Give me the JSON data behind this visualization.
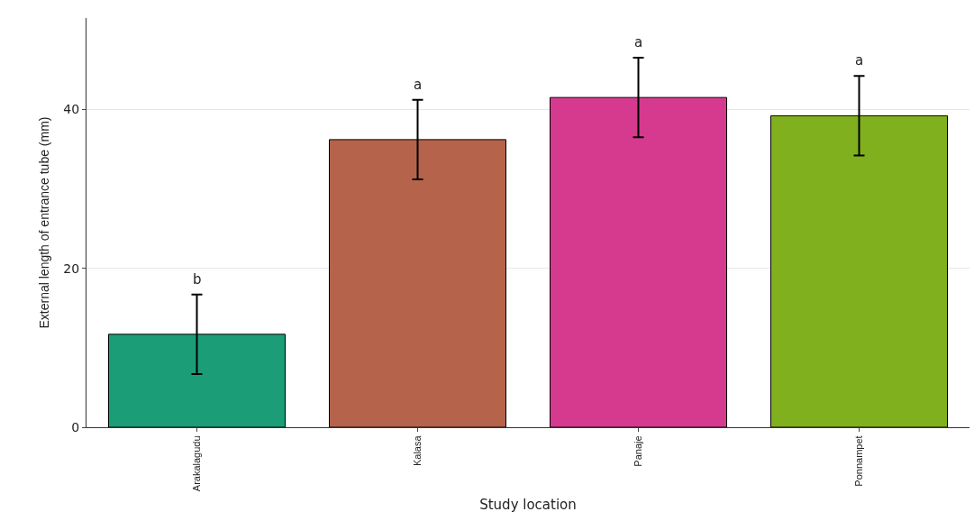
{
  "chart_data": {
    "type": "bar",
    "xlabel": "Study location",
    "ylabel": "External length of entrance tube (mm)",
    "categories": [
      "Arakalagudu",
      "Kalasa",
      "Panaje",
      "Ponnampet"
    ],
    "values": [
      11.7,
      36.2,
      41.5,
      39.2
    ],
    "colors": [
      "#1b9e77",
      "#b5634b",
      "#d63a8f",
      "#80b01e"
    ],
    "errors": [
      5,
      5,
      5,
      5
    ],
    "ylim": [
      0,
      51.5
    ],
    "yticks": [
      0,
      20,
      40
    ],
    "grid": "y",
    "annotations": [
      "b",
      "a",
      "a",
      "a"
    ]
  }
}
